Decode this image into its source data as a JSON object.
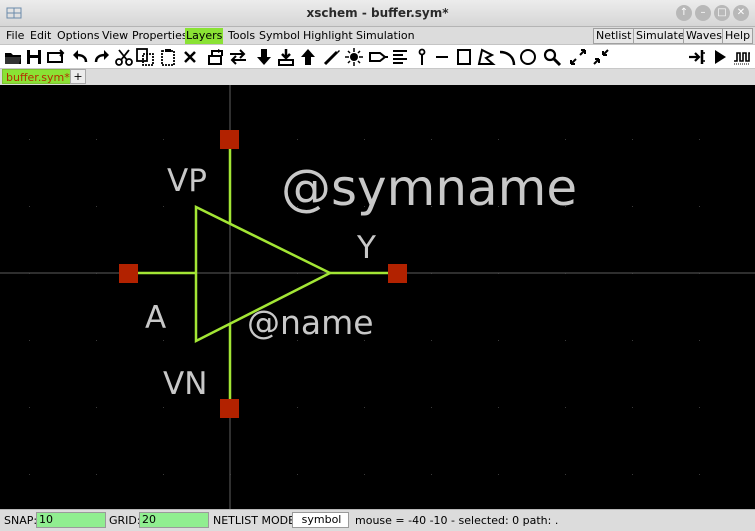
{
  "window": {
    "title": "xschem - buffer.sym*",
    "controls": [
      "↑",
      "–",
      "□",
      "✕"
    ]
  },
  "menubar": {
    "left": [
      "File",
      "Edit",
      "Options",
      "View",
      "Properties",
      "Layers",
      "Tools",
      "Symbol",
      "Highlight",
      "Simulation"
    ],
    "active": "Layers",
    "right": [
      "Netlist",
      "Simulate",
      "Waves",
      "Help"
    ]
  },
  "toolbar": {
    "icons": [
      "open-icon",
      "save-icon",
      "reload-icon",
      "undo-icon",
      "redo-icon",
      "cut-icon",
      "copy-icon",
      "paste-icon",
      "delete-icon",
      "place-symbol-icon",
      "move-icon",
      "push-down-icon",
      "go-into-icon",
      "pop-up-icon",
      "draw-wire-icon",
      "highlight-icon",
      "insert-pin-icon",
      "text-list-icon",
      "label-icon",
      "line-icon",
      "rectangle-icon",
      "polygon-icon",
      "arc-icon",
      "circle-icon",
      "zoom-icon",
      "zoom-full-icon",
      "zoom-out-icon",
      "netlist-icon",
      "simulate-icon",
      "waves-icon"
    ]
  },
  "tabs": {
    "active": "buffer.sym*",
    "add": "+"
  },
  "schematic": {
    "labels": {
      "vp": "VP",
      "vn": "VN",
      "a": "A",
      "y": "Y",
      "symname": "@symname",
      "name": "@name"
    },
    "colors": {
      "background": "#000000",
      "line": "#a3e635",
      "pin": "#b22200",
      "text": "#c8c8c8",
      "axis": "#4a4a4a"
    }
  },
  "status": {
    "snap_label": "SNAP:",
    "snap_value": "10",
    "grid_label": "GRID:",
    "grid_value": "20",
    "mode_label": "NETLIST MODE:",
    "mode_value": "symbol",
    "info": "mouse = -40 -10 - selected: 0 path: ."
  }
}
